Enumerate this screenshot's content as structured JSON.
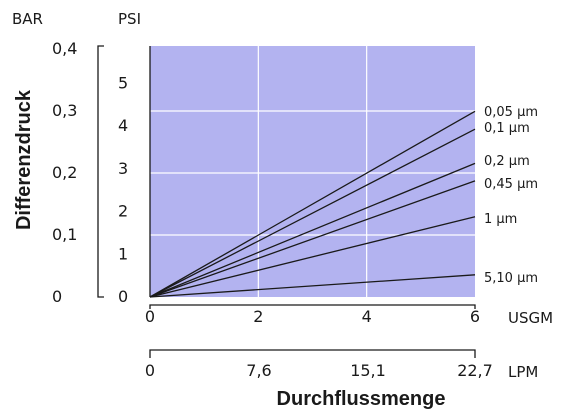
{
  "chart_data": {
    "type": "line",
    "title": "",
    "ylabel": "Differenzdruck",
    "xlabel": "Durchflussmenge",
    "y_units": {
      "bar": "BAR",
      "psi": "PSI"
    },
    "x_units": {
      "usgm": "USGM",
      "lpm": "LPM"
    },
    "bar_ticks": [
      "0",
      "0,1",
      "0,2",
      "0,3",
      "0,4"
    ],
    "psi_ticks": [
      "0",
      "1",
      "2",
      "3",
      "4",
      "5"
    ],
    "usgm_ticks": [
      "0",
      "2",
      "4",
      "6"
    ],
    "lpm_ticks": [
      "0",
      "7,6",
      "15,1",
      "22,7"
    ],
    "xlim": [
      0,
      6
    ],
    "ylim_psi": [
      0,
      5.8
    ],
    "grid": true,
    "plot_background": "#b3b3f0",
    "line_color": "#1a1a1a",
    "series": [
      {
        "name": "0,05 µm",
        "x": [
          0,
          6
        ],
        "y": [
          0,
          4.35
        ]
      },
      {
        "name": "0,1 µm",
        "x": [
          0,
          6
        ],
        "y": [
          0,
          3.93
        ]
      },
      {
        "name": "0,2 µm",
        "x": [
          0,
          6
        ],
        "y": [
          0,
          3.13
        ]
      },
      {
        "name": "0,45 µm",
        "x": [
          0,
          6
        ],
        "y": [
          0,
          2.72
        ]
      },
      {
        "name": "1 µm",
        "x": [
          0,
          6
        ],
        "y": [
          0,
          1.88
        ]
      },
      {
        "name": "5,10 µm",
        "x": [
          0,
          6
        ],
        "y": [
          0,
          0.52
        ]
      }
    ]
  }
}
